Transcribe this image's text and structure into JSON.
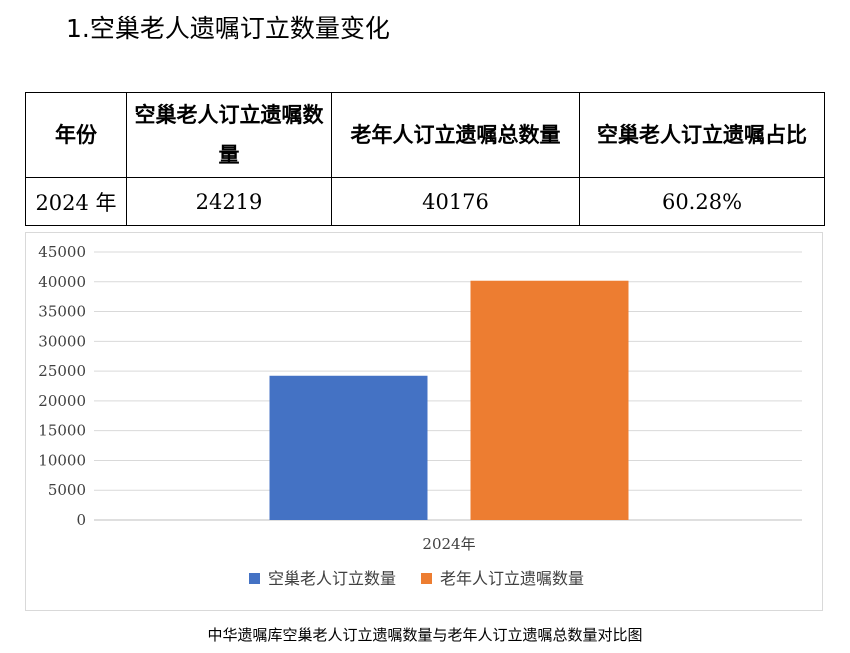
{
  "heading": "1.空巢老人遗嘱订立数量变化",
  "table": {
    "headers": [
      "年份",
      "空巢老人订立遗嘱数量",
      "老年人订立遗嘱总数量",
      "空巢老人订立遗嘱占比"
    ],
    "rows": [
      [
        "2024 年",
        "24219",
        "40176",
        "60.28%"
      ]
    ]
  },
  "chart_data": {
    "type": "bar",
    "categories": [
      "2024年"
    ],
    "series": [
      {
        "name": "空巢老人订立数量",
        "values": [
          24219
        ],
        "color": "#4472C4"
      },
      {
        "name": "老年人订立遗嘱数量",
        "values": [
          40176
        ],
        "color": "#ED7D31"
      }
    ],
    "ylim": [
      0,
      45000
    ],
    "yticks": [
      "0",
      "5000",
      "10000",
      "15000",
      "20000",
      "25000",
      "30000",
      "35000",
      "40000",
      "45000"
    ],
    "grid": true,
    "legend": "bottom",
    "title": "",
    "xlabel": "",
    "ylabel": ""
  },
  "caption": "中华遗嘱库空巢老人订立遗嘱数量与老年人订立遗嘱总数量对比图"
}
